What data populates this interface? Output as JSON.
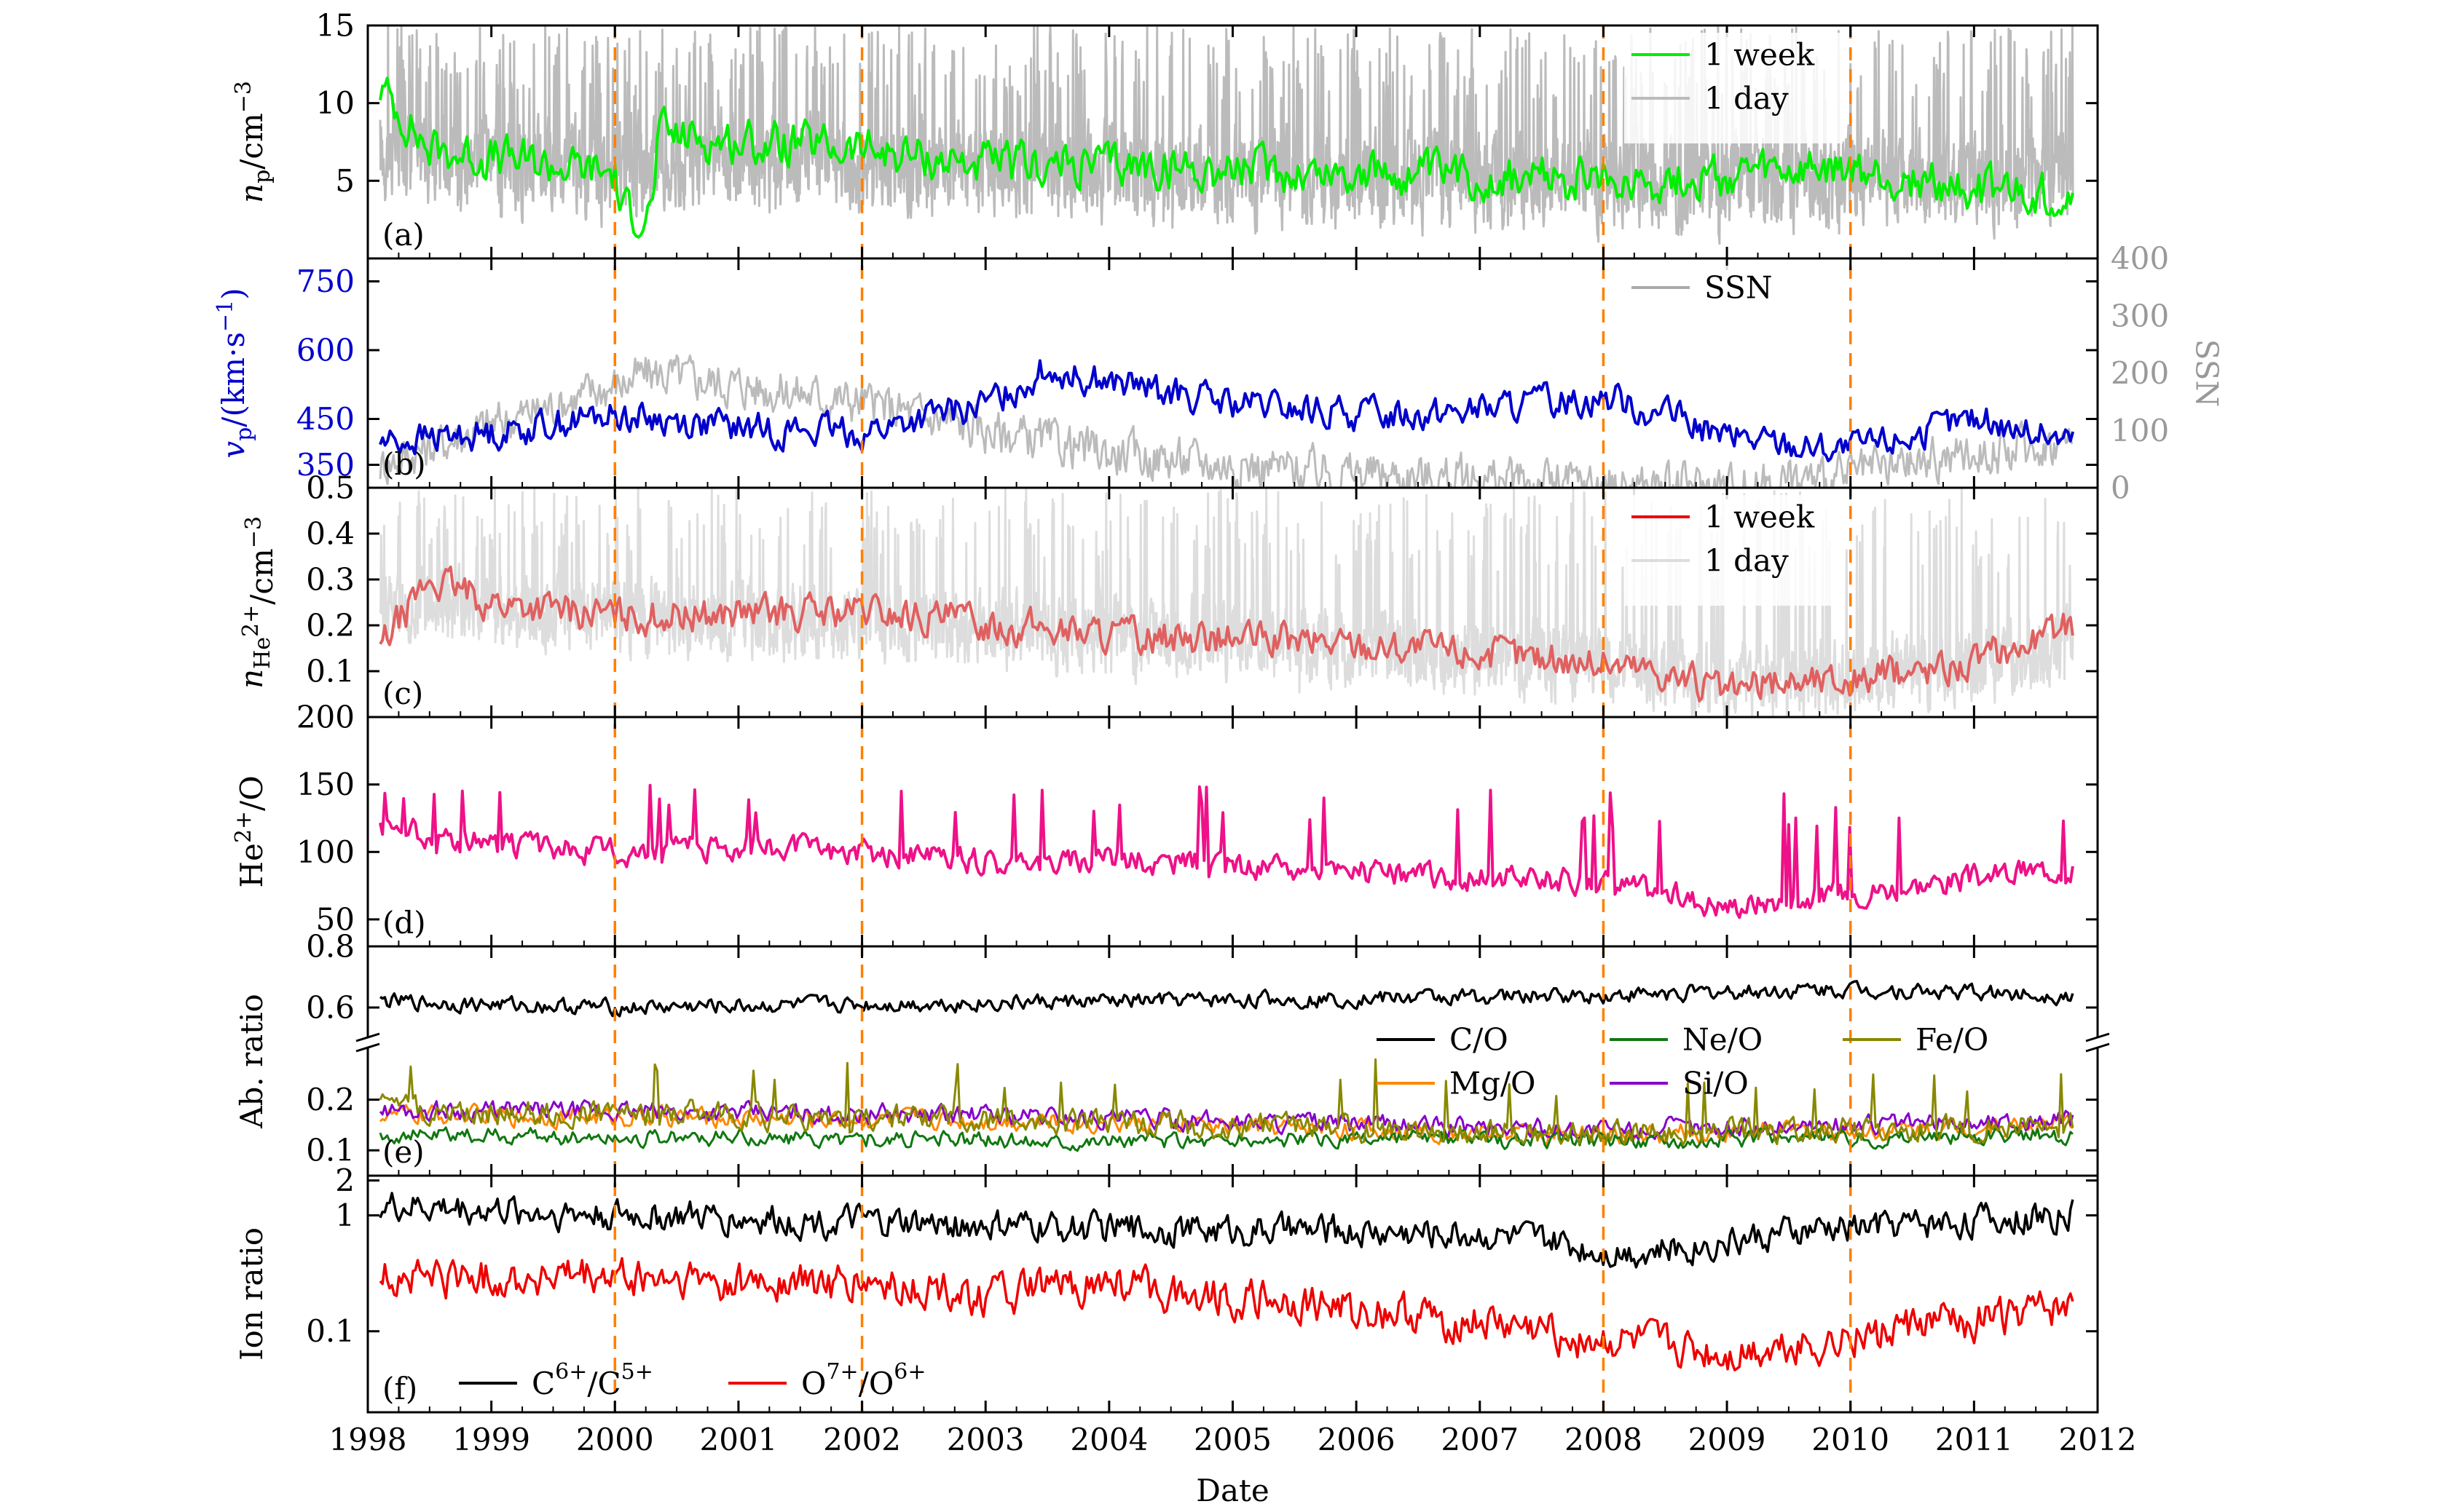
{
  "chart_data": {
    "type": "line",
    "xlabel": "Date",
    "x_range": [
      1998,
      2012
    ],
    "x_ticks": [
      "1998",
      "1999",
      "2000",
      "2001",
      "2002",
      "2003",
      "2004",
      "2005",
      "2006",
      "2007",
      "2008",
      "2009",
      "2010",
      "2011",
      "2012"
    ],
    "vlines": [
      2000,
      2002,
      2008,
      2010
    ],
    "panels": [
      {
        "id": "a",
        "label": "(a)",
        "ylabel": "n_p/cm^-3",
        "ylim": [
          0,
          15
        ],
        "yticks": [
          "5",
          "10",
          "15"
        ],
        "legend": [
          {
            "name": "1 week",
            "color": "#00ee00"
          },
          {
            "name": "1 day",
            "color": "#bbbbbb"
          }
        ],
        "series": [
          {
            "name": "1 day",
            "color": "#bbbbbb",
            "width": 3,
            "curve": {
              "base": [
                [
                  1998.1,
                  7
                ],
                [
                  2000,
                  5.5
                ],
                [
                  2000.5,
                  6.5
                ],
                [
                  2004,
                  5.5
                ],
                [
                  2008,
                  5
                ],
                [
                  2010,
                  5
                ],
                [
                  2011.8,
                  5
                ]
              ],
              "amp": 4.5,
              "period": 0.004,
              "spike": 0.12,
              "spikeTo": 15
            }
          },
          {
            "name": "1 week",
            "color": "#00ee00",
            "width": 4,
            "curve": {
              "base": [
                [
                  1998.1,
                  11
                ],
                [
                  1998.5,
                  7
                ],
                [
                  2000,
                  5.5
                ],
                [
                  2000.05,
                  3
                ],
                [
                  2000.3,
                  3
                ],
                [
                  2000.35,
                  8
                ],
                [
                  2001,
                  7.5
                ],
                [
                  2002,
                  7
                ],
                [
                  2003,
                  6
                ],
                [
                  2004,
                  6
                ],
                [
                  2006,
                  5.5
                ],
                [
                  2008,
                  5
                ],
                [
                  2010,
                  5.5
                ],
                [
                  2011.5,
                  4
                ],
                [
                  2011.8,
                  4
                ]
              ],
              "amp": 2.2,
              "period": 0.019
            }
          }
        ]
      },
      {
        "id": "b",
        "label": "(b)",
        "ylabel": "v_p/(km·s^-1)",
        "ylabel_color": "#0000cc",
        "ylim": [
          300,
          800
        ],
        "yticks": [
          "350",
          "450",
          "600",
          "750"
        ],
        "ytick_color": "#0000cc",
        "y2label": "SSN",
        "y2lim": [
          0,
          400
        ],
        "y2ticks": [
          "0",
          "100",
          "200",
          "300",
          "400"
        ],
        "y2_color": "#999999",
        "legend": [
          {
            "name": "SSN",
            "color": "#aaaaaa"
          }
        ],
        "series": [
          {
            "name": "SSN",
            "color": "#bbbbbb",
            "width": 3,
            "axis": "y2",
            "curve": {
              "base": [
                [
                  1998.1,
                  40
                ],
                [
                  1999,
                  110
                ],
                [
                  2000.3,
                  200
                ],
                [
                  2001,
                  180
                ],
                [
                  2002,
                  150
                ],
                [
                  2003,
                  100
                ],
                [
                  2004,
                  60
                ],
                [
                  2005,
                  40
                ],
                [
                  2006,
                  25
                ],
                [
                  2007,
                  15
                ],
                [
                  2008,
                  5
                ],
                [
                  2009,
                  3
                ],
                [
                  2010,
                  20
                ],
                [
                  2011,
                  60
                ],
                [
                  2011.8,
                  80
                ]
              ],
              "amp": 60,
              "period": 0.012
            }
          },
          {
            "name": "v_p",
            "color": "#0000cc",
            "width": 4,
            "curve": {
              "base": [
                [
                  1998.1,
                  400
                ],
                [
                  1999,
                  420
                ],
                [
                  2000,
                  460
                ],
                [
                  2001,
                  430
                ],
                [
                  2002,
                  420
                ],
                [
                  2003,
                  480
                ],
                [
                  2003.5,
                  560
                ],
                [
                  2004,
                  530
                ],
                [
                  2005,
                  480
                ],
                [
                  2006,
                  460
                ],
                [
                  2007,
                  470
                ],
                [
                  2008,
                  500
                ],
                [
                  2008.5,
                  460
                ],
                [
                  2009,
                  410
                ],
                [
                  2010,
                  380
                ],
                [
                  2011,
                  450
                ],
                [
                  2011.8,
                  400
                ]
              ],
              "amp": 55,
              "period": 0.02
            }
          }
        ]
      },
      {
        "id": "c",
        "label": "(c)",
        "ylabel": "n_He2+/cm^-3",
        "ylim": [
          0,
          0.5
        ],
        "yticks": [
          "0.1",
          "0.2",
          "0.3",
          "0.4",
          "0.5"
        ],
        "legend": [
          {
            "name": "1 week",
            "color": "#ee0000"
          },
          {
            "name": "1 day",
            "color": "#dddddd"
          }
        ],
        "series": [
          {
            "name": "1 day",
            "color": "#dddddd",
            "width": 3,
            "curve": {
              "base": [
                [
                  1998.1,
                  0.25
                ],
                [
                  2000,
                  0.22
                ],
                [
                  2002,
                  0.2
                ],
                [
                  2004,
                  0.18
                ],
                [
                  2006,
                  0.15
                ],
                [
                  2008,
                  0.12
                ],
                [
                  2009,
                  0.07
                ],
                [
                  2010,
                  0.08
                ],
                [
                  2011.8,
                  0.15
                ]
              ],
              "amp": 0.12,
              "period": 0.004,
              "spike": 0.1,
              "spikeTo": 0.5
            }
          },
          {
            "name": "1 week",
            "color": "#e06060",
            "width": 4,
            "curve": {
              "base": [
                [
                  1998.1,
                  0.15
                ],
                [
                  1998.5,
                  0.3
                ],
                [
                  1999,
                  0.25
                ],
                [
                  2000,
                  0.22
                ],
                [
                  2002,
                  0.23
                ],
                [
                  2004,
                  0.18
                ],
                [
                  2006,
                  0.16
                ],
                [
                  2008,
                  0.12
                ],
                [
                  2008.5,
                  0.1
                ],
                [
                  2009,
                  0.05
                ],
                [
                  2009.5,
                  0.08
                ],
                [
                  2010,
                  0.08
                ],
                [
                  2011,
                  0.12
                ],
                [
                  2011.8,
                  0.2
                ]
              ],
              "amp": 0.06,
              "period": 0.019
            }
          }
        ]
      },
      {
        "id": "d",
        "label": "(d)",
        "ylabel": "He^2+/O",
        "ylim": [
          30,
          200
        ],
        "yticks": [
          "50",
          "100",
          "150",
          "200"
        ],
        "series": [
          {
            "name": "He2+/O",
            "color": "#ee1188",
            "width": 4,
            "curve": {
              "base": [
                [
                  1998.1,
                  120
                ],
                [
                  1999,
                  105
                ],
                [
                  2000,
                  100
                ],
                [
                  2001,
                  105
                ],
                [
                  2002,
                  100
                ],
                [
                  2003,
                  92
                ],
                [
                  2004,
                  95
                ],
                [
                  2006,
                  85
                ],
                [
                  2008,
                  78
                ],
                [
                  2009,
                  60
                ],
                [
                  2010,
                  70
                ],
                [
                  2011,
                  80
                ],
                [
                  2011.8,
                  90
                ]
              ],
              "amp": 15,
              "period": 0.019,
              "spike": 0.04,
              "spikeTo": 150
            }
          }
        ]
      },
      {
        "id": "e",
        "label": "(e)",
        "ylabel": "Ab. ratio",
        "broken_axis": true,
        "yticks": [
          "0.1",
          "0.2",
          "0.6",
          "0.8"
        ],
        "upper_ylim": [
          0.5,
          0.8
        ],
        "lower_ylim": [
          0.05,
          0.3
        ],
        "legend": [
          {
            "name": "C/O",
            "color": "#000000"
          },
          {
            "name": "Ne/O",
            "color": "#117711"
          },
          {
            "name": "Fe/O",
            "color": "#888800"
          },
          {
            "name": "Mg/O",
            "color": "#ff8800"
          },
          {
            "name": "Si/O",
            "color": "#8800cc"
          }
        ],
        "series": [
          {
            "name": "C/O",
            "color": "#000000",
            "width": 3.5,
            "part": "upper",
            "curve": {
              "base": [
                [
                  1998.1,
                  0.62
                ],
                [
                  2000,
                  0.6
                ],
                [
                  2004,
                  0.62
                ],
                [
                  2008,
                  0.64
                ],
                [
                  2010,
                  0.66
                ],
                [
                  2011.8,
                  0.64
                ]
              ],
              "amp": 0.04,
              "period": 0.019
            }
          },
          {
            "name": "Mg/O",
            "color": "#ff8800",
            "width": 3,
            "part": "lower",
            "curve": {
              "base": [
                [
                  1998.1,
                  0.17
                ],
                [
                  2003,
                  0.16
                ],
                [
                  2008,
                  0.13
                ],
                [
                  2011.8,
                  0.15
                ]
              ],
              "amp": 0.03,
              "period": 0.019
            }
          },
          {
            "name": "Si/O",
            "color": "#8800cc",
            "width": 3,
            "part": "lower",
            "curve": {
              "base": [
                [
                  1998.1,
                  0.18
                ],
                [
                  2003,
                  0.17
                ],
                [
                  2008,
                  0.14
                ],
                [
                  2011.8,
                  0.16
                ]
              ],
              "amp": 0.03,
              "period": 0.019
            }
          },
          {
            "name": "Ne/O",
            "color": "#117711",
            "width": 3,
            "part": "lower",
            "curve": {
              "base": [
                [
                  1998.1,
                  0.13
                ],
                [
                  2003,
                  0.12
                ],
                [
                  2008,
                  0.12
                ],
                [
                  2011.8,
                  0.13
                ]
              ],
              "amp": 0.025,
              "period": 0.019
            }
          },
          {
            "name": "Fe/O",
            "color": "#888800",
            "width": 3,
            "part": "lower",
            "curve": {
              "base": [
                [
                  1998.1,
                  0.18
                ],
                [
                  2003,
                  0.16
                ],
                [
                  2008,
                  0.13
                ],
                [
                  2011.8,
                  0.15
                ]
              ],
              "amp": 0.04,
              "period": 0.019,
              "spike": 0.05,
              "spikeTo": 0.28
            }
          }
        ]
      },
      {
        "id": "f",
        "label": "(f)",
        "ylabel": "Ion ratio",
        "yscale": "log",
        "ylim": [
          0.02,
          2.2
        ],
        "yticks": [
          "0.1",
          "1",
          "2"
        ],
        "legend": [
          {
            "name": "C6+/C5+",
            "color": "#000000"
          },
          {
            "name": "O7+/O6+",
            "color": "#ee0000"
          }
        ],
        "series": [
          {
            "name": "C6+/C5+",
            "color": "#000000",
            "width": 3.5,
            "curve": {
              "base": [
                [
                  1998.1,
                  1.2
                ],
                [
                  2000,
                  1.0
                ],
                [
                  2003,
                  0.8
                ],
                [
                  2007,
                  0.7
                ],
                [
                  2008,
                  0.5
                ],
                [
                  2008.5,
                  0.5
                ],
                [
                  2010,
                  0.8
                ],
                [
                  2011.8,
                  1.0
                ]
              ],
              "amp": 0.22,
              "period": 0.019,
              "log": true
            }
          },
          {
            "name": "O7+/O6+",
            "color": "#ee0000",
            "width": 3.5,
            "curve": {
              "base": [
                [
                  1998.1,
                  0.3
                ],
                [
                  2000,
                  0.28
                ],
                [
                  2002,
                  0.25
                ],
                [
                  2003,
                  0.2
                ],
                [
                  2004,
                  0.25
                ],
                [
                  2006,
                  0.15
                ],
                [
                  2008,
                  0.08
                ],
                [
                  2009,
                  0.06
                ],
                [
                  2010,
                  0.09
                ],
                [
                  2011.8,
                  0.15
                ]
              ],
              "amp": 0.28,
              "period": 0.019,
              "log": true
            }
          }
        ]
      }
    ]
  }
}
